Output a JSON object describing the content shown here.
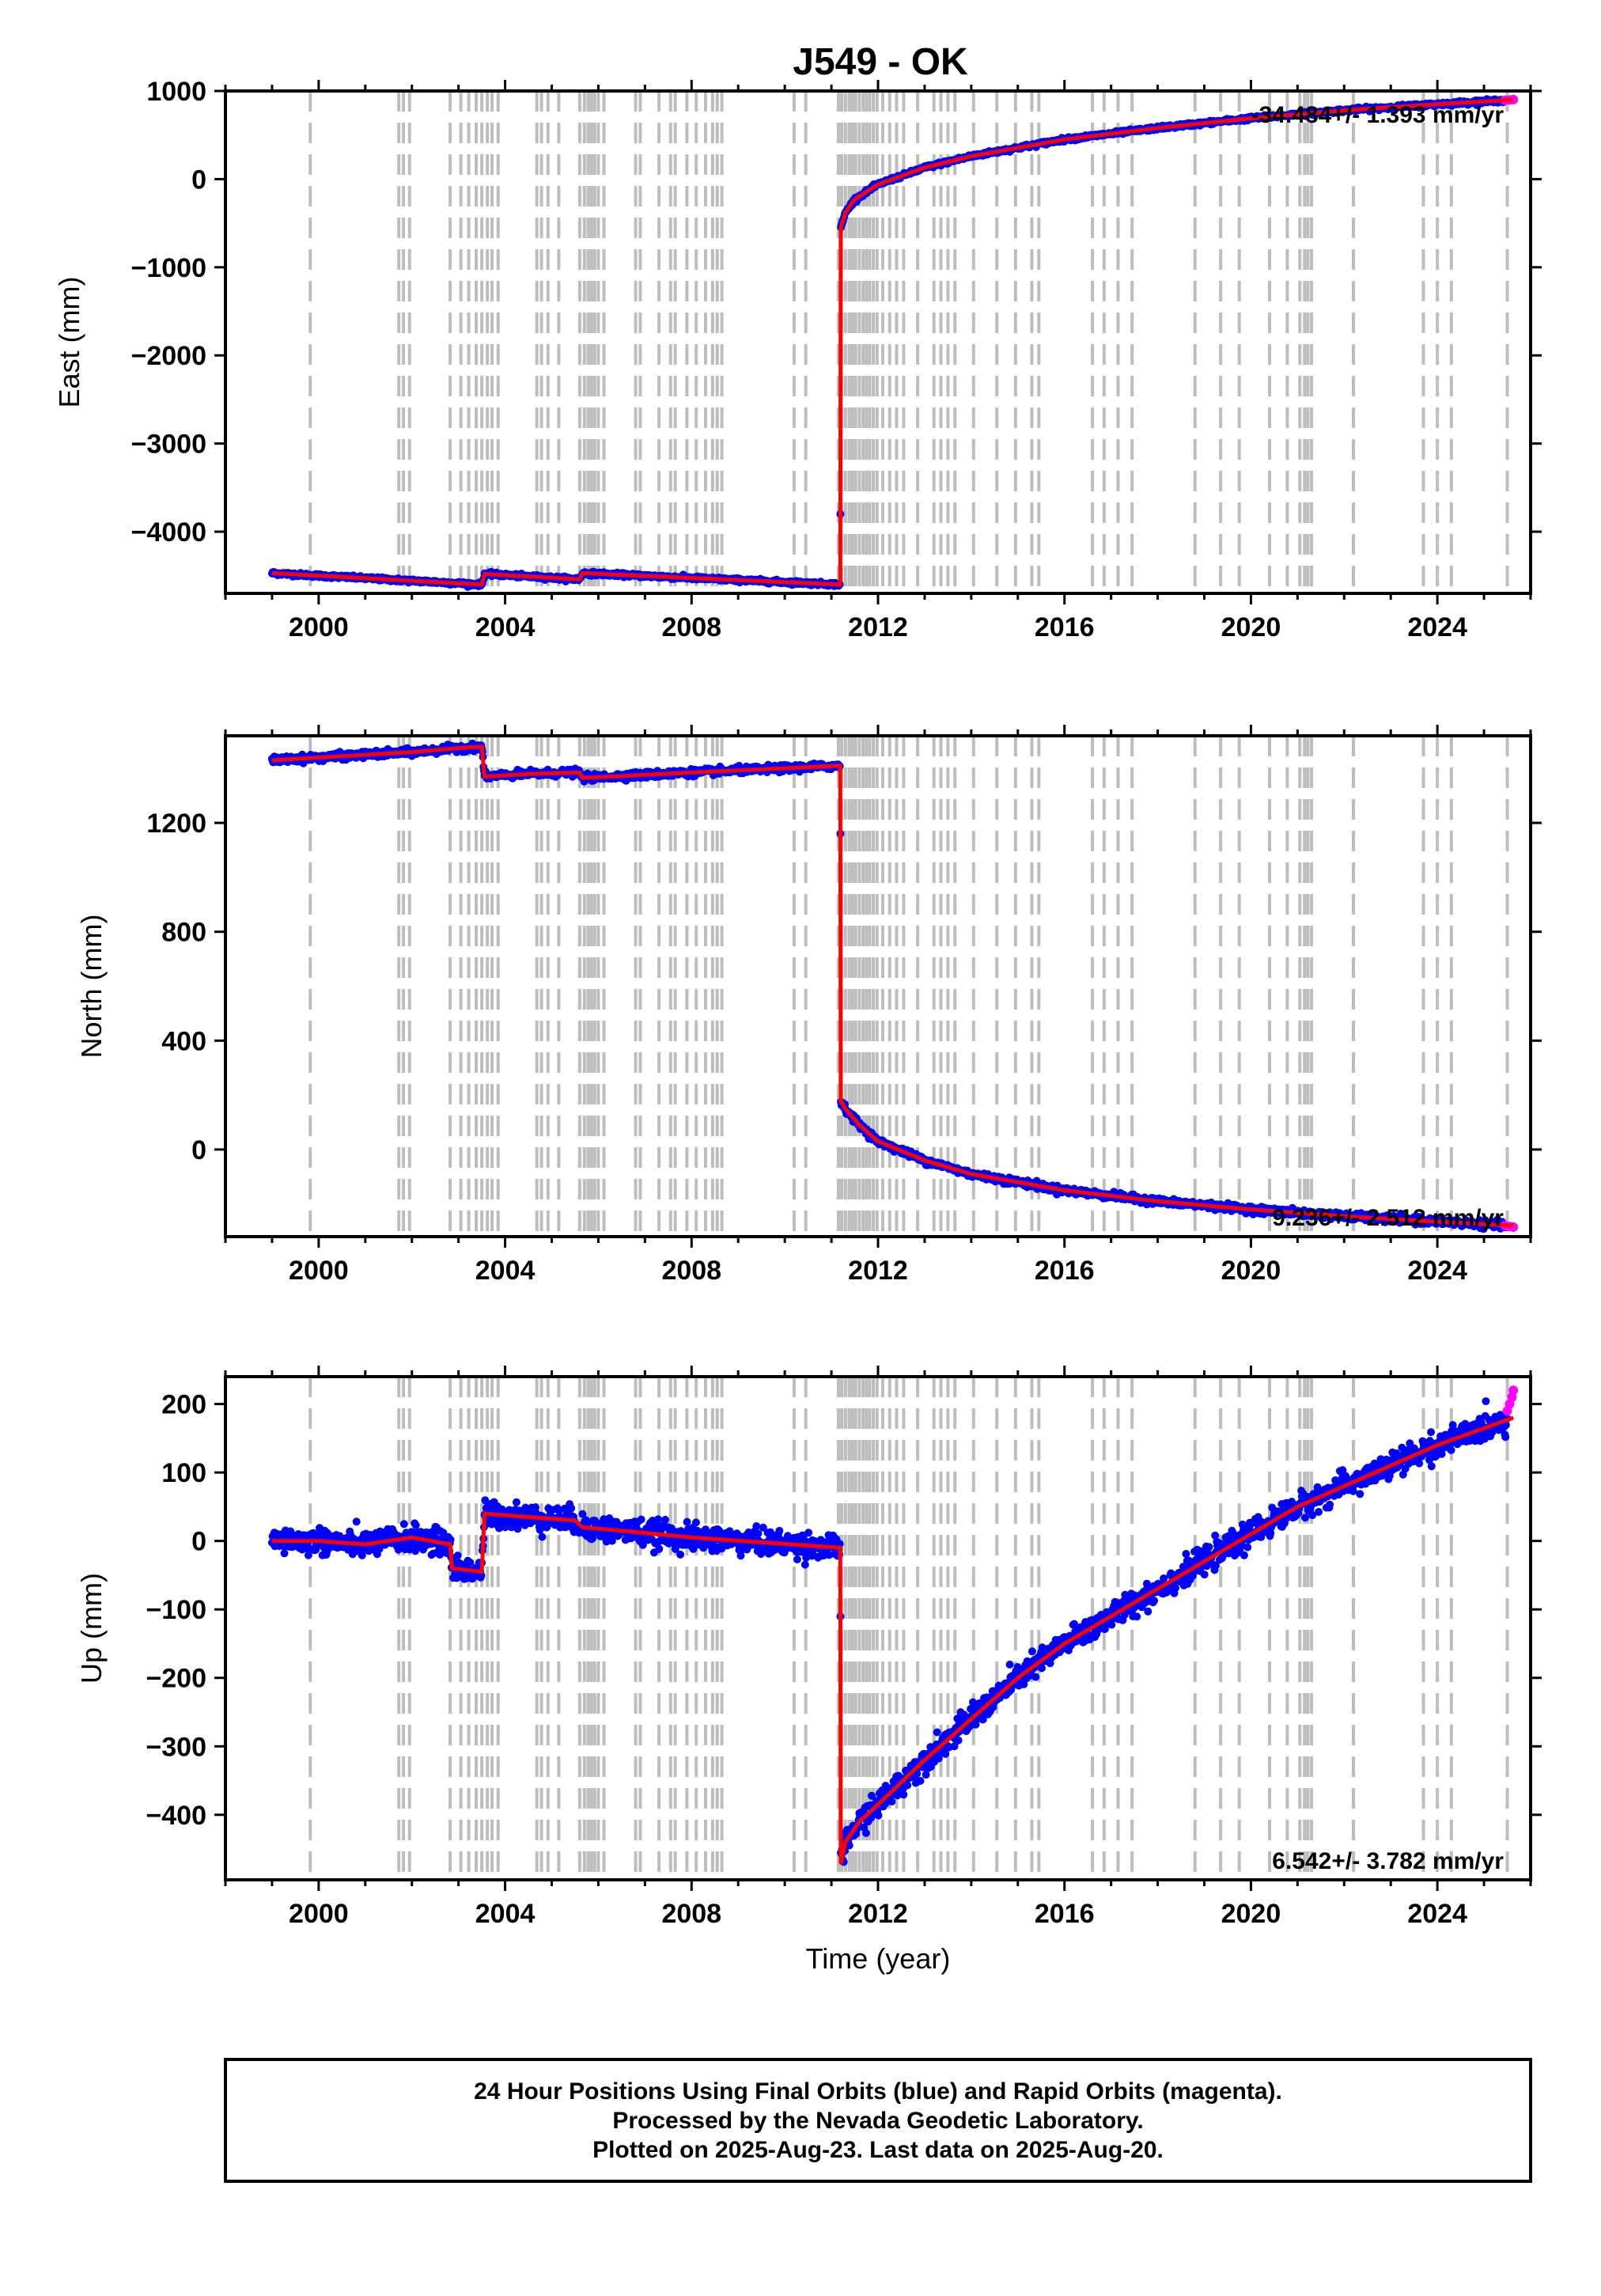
{
  "title": "J549 - OK",
  "footer": {
    "line1": "24 Hour Positions Using Final Orbits (blue) and Rapid Orbits (magenta).",
    "line2": "Processed by the Nevada Geodetic Laboratory.",
    "line3": "Plotted on 2025-Aug-23. Last data on 2025-Aug-20."
  },
  "colors": {
    "final": "#0000ff",
    "rapid": "#ff00ff",
    "model": "#ff0000",
    "event": "#bdbdbd"
  },
  "events": [
    1999.82,
    2001.72,
    2001.82,
    2001.95,
    2002.82,
    2003.05,
    2003.22,
    2003.38,
    2003.5,
    2003.62,
    2003.72,
    2003.85,
    2004.68,
    2004.78,
    2004.92,
    2005.15,
    2005.6,
    2005.7,
    2005.78,
    2005.85,
    2005.92,
    2006.0,
    2006.12,
    2006.8,
    2006.9,
    2007.3,
    2007.55,
    2007.65,
    2007.9,
    2008.1,
    2008.3,
    2008.45,
    2008.55,
    2008.65,
    2010.2,
    2010.45,
    2011.15,
    2011.22,
    2011.3,
    2011.38,
    2011.45,
    2011.52,
    2011.6,
    2011.68,
    2011.75,
    2011.82,
    2011.9,
    2011.98,
    2012.1,
    2012.25,
    2012.4,
    2012.55,
    2012.85,
    2013.2,
    2013.35,
    2013.5,
    2013.65,
    2014.05,
    2014.55,
    2014.95,
    2015.3,
    2015.45,
    2016.6,
    2016.85,
    2017.15,
    2017.45,
    2018.8,
    2019.35,
    2019.75,
    2020.4,
    2020.78,
    2021.05,
    2021.15,
    2021.22,
    2021.3,
    2022.2,
    2023.7,
    2024.0,
    2024.3,
    2025.5
  ],
  "chart_data": [
    {
      "type": "scatter",
      "ylabel": "East (mm)",
      "xlim": [
        1998.0,
        2026.0
      ],
      "ylim": [
        -4700,
        1000
      ],
      "xticks": [
        2000,
        2004,
        2008,
        2012,
        2016,
        2020,
        2024
      ],
      "xtick_labels": [
        "2000",
        "2004",
        "2008",
        "2012",
        "2016",
        "2020",
        "2024"
      ],
      "yticks": [
        1000,
        0,
        -1000,
        -2000,
        -3000,
        -4000
      ],
      "ytick_labels": [
        "1000",
        "0",
        "−1000",
        "−2000",
        "−3000",
        "−4000"
      ],
      "rate_text": "-34.484+/- 1.393 mm/yr",
      "rate_position": "top-right",
      "model": {
        "x": [
          1999.0,
          2003.5,
          2003.56,
          2005.6,
          2005.66,
          2011.19,
          2011.2,
          2011.3,
          2011.5,
          2012.0,
          2013.0,
          2014.0,
          2016.0,
          2018.0,
          2020.0,
          2022.0,
          2024.0,
          2025.63
        ],
        "y": [
          -4470,
          -4600,
          -4480,
          -4540,
          -4470,
          -4600,
          -560,
          -380,
          -230,
          -60,
          130,
          260,
          450,
          580,
          690,
          780,
          850,
          900
        ]
      },
      "rapid": {
        "x": [
          2025.45,
          2025.55,
          2025.63
        ],
        "y": [
          895,
          898,
          902
        ]
      },
      "noise": 10
    },
    {
      "type": "scatter",
      "ylabel": "North (mm)",
      "xlim": [
        1998.0,
        2026.0
      ],
      "ylim": [
        -320,
        1520
      ],
      "xticks": [
        2000,
        2004,
        2008,
        2012,
        2016,
        2020,
        2024
      ],
      "xtick_labels": [
        "2000",
        "2004",
        "2008",
        "2012",
        "2016",
        "2020",
        "2024"
      ],
      "yticks": [
        1200,
        800,
        400,
        0
      ],
      "ytick_labels": [
        "1200",
        "800",
        "400",
        "0"
      ],
      "rate_text": "9.236+/- 2.512 mm/yr",
      "rate_position": "bottom-right",
      "model": {
        "x": [
          1999.0,
          2000.0,
          2002.0,
          2003.0,
          2003.5,
          2003.56,
          2004.5,
          2005.6,
          2005.66,
          2008.0,
          2011.19,
          2011.2,
          2011.3,
          2011.6,
          2012.0,
          2013.0,
          2014.0,
          2016.0,
          2018.0,
          2020.0,
          2022.0,
          2024.0,
          2025.63
        ],
        "y": [
          1430,
          1440,
          1460,
          1475,
          1480,
          1370,
          1380,
          1385,
          1365,
          1385,
          1410,
          180,
          150,
          90,
          30,
          -40,
          -90,
          -150,
          -190,
          -220,
          -245,
          -265,
          -280
        ]
      },
      "rapid": {
        "x": [
          2025.45,
          2025.55,
          2025.63
        ],
        "y": [
          -280,
          -283,
          -285
        ]
      },
      "noise": 6
    },
    {
      "type": "scatter",
      "ylabel": "Up (mm)",
      "xlabel": "Time (year)",
      "xlim": [
        1998.0,
        2026.0
      ],
      "ylim": [
        -495,
        240
      ],
      "xticks": [
        2000,
        2004,
        2008,
        2012,
        2016,
        2020,
        2024
      ],
      "xtick_labels": [
        "2000",
        "2004",
        "2008",
        "2012",
        "2016",
        "2020",
        "2024"
      ],
      "yticks": [
        200,
        100,
        0,
        -100,
        -200,
        -300,
        -400
      ],
      "ytick_labels": [
        "200",
        "100",
        "0",
        "−100",
        "−200",
        "−300",
        "−400"
      ],
      "rate_text": "6.542+/- 3.782 mm/yr",
      "rate_position": "bottom-right",
      "model": {
        "x": [
          1999.0,
          2000.0,
          2001.0,
          2002.0,
          2002.82,
          2002.86,
          2003.5,
          2003.56,
          2004.5,
          2005.5,
          2005.66,
          2006.5,
          2008.0,
          2011.19,
          2011.2,
          2011.3,
          2011.6,
          2012.0,
          2013.0,
          2014.0,
          2015.0,
          2016.0,
          2018.0,
          2020.0,
          2021.0,
          2022.0,
          2024.0,
          2025.63
        ],
        "y": [
          0,
          0,
          -5,
          5,
          -5,
          -40,
          -45,
          40,
          35,
          30,
          20,
          15,
          5,
          -10,
          -470,
          -440,
          -410,
          -385,
          -320,
          -260,
          -200,
          -150,
          -70,
          10,
          50,
          80,
          140,
          180
        ]
      },
      "rapid": {
        "x": [
          2025.5,
          2025.55,
          2025.6,
          2025.63
        ],
        "y": [
          190,
          200,
          210,
          220
        ]
      },
      "noise": 9
    }
  ]
}
